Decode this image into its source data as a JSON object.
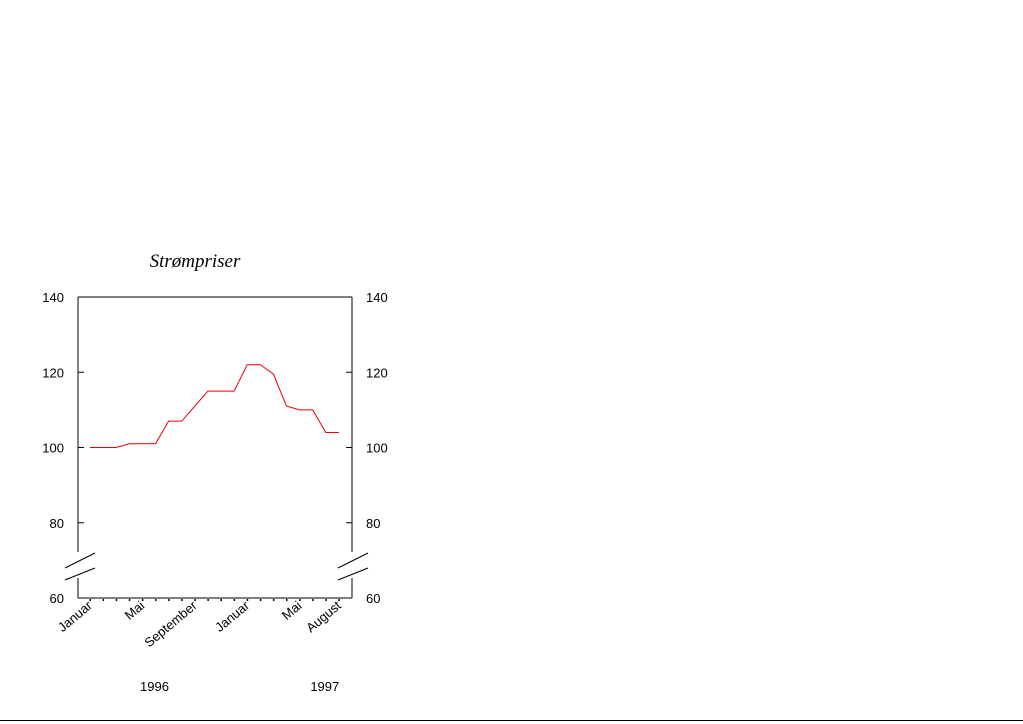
{
  "chart_data": {
    "type": "line",
    "title": "Strømpriser",
    "xlabel": "",
    "ylabel": "",
    "ylim": [
      60,
      140
    ],
    "axis_break": true,
    "yticks": [
      "60",
      "80",
      "100",
      "120",
      "140"
    ],
    "x_tick_labels": [
      {
        "label": "Januar",
        "index": 0
      },
      {
        "label": "Mai",
        "index": 4
      },
      {
        "label": "September",
        "index": 8
      },
      {
        "label": "Januar",
        "index": 12
      },
      {
        "label": "Mai",
        "index": 16
      },
      {
        "label": "August",
        "index": 19
      }
    ],
    "year_labels": [
      {
        "label": "1996",
        "index": 5
      },
      {
        "label": "1997",
        "index": 18
      }
    ],
    "series": [
      {
        "color": "#e8000a",
        "x": [
          "Jan 1996",
          "Feb 1996",
          "Mar 1996",
          "Apr 1996",
          "May 1996",
          "Jun 1996",
          "Jul 1996",
          "Aug 1996",
          "Sep 1996",
          "Oct 1996",
          "Nov 1996",
          "Dec 1996",
          "Jan 1997",
          "Feb 1997",
          "Mar 1997",
          "Apr 1997",
          "May 1997",
          "Jun 1997",
          "Jul 1997",
          "Aug 1997"
        ],
        "values": [
          100,
          100,
          100,
          101,
          101,
          101,
          107,
          107,
          111,
          115,
          115,
          115,
          122,
          122,
          119.5,
          111,
          110,
          110,
          104,
          104
        ]
      }
    ],
    "grid": false
  }
}
